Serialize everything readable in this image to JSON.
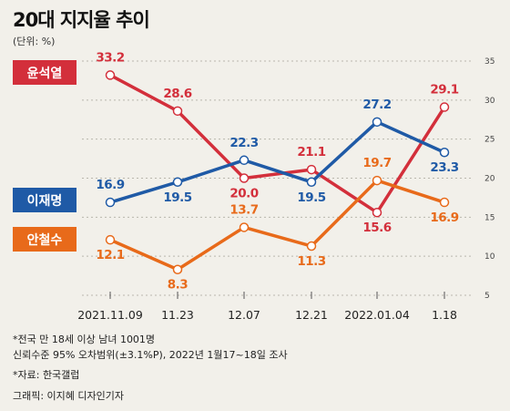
{
  "header": {
    "title": "20대 지지율 추이",
    "unit": "(단위: %)"
  },
  "footnotes": {
    "survey_line1": "*전국 만 18세 이상 남녀 1001명",
    "survey_line2": "신뢰수준 95% 오차범위(±3.1%P), 2022년 1월17~18일 조사",
    "source": "*자료: 한국갤럽",
    "credit": "그래픽: 이지혜 디자인기자"
  },
  "chart_data": {
    "type": "line",
    "title": "20대 지지율 추이",
    "xlabel": "",
    "ylabel": "",
    "categories": [
      "2021.11.09",
      "11.23",
      "12.07",
      "12.21",
      "2022.01.04",
      "1.18"
    ],
    "ylim": [
      5,
      35
    ],
    "yticks": [
      5,
      10,
      15,
      20,
      25,
      30,
      35
    ],
    "grid": true,
    "legend": "left",
    "series": [
      {
        "name": "윤석열",
        "color": "#d32f3b",
        "values": [
          33.2,
          28.6,
          20.0,
          21.1,
          15.6,
          29.1
        ],
        "labels": [
          "33.2",
          "28.6",
          "20.0",
          "21.1",
          "15.6",
          "29.1"
        ]
      },
      {
        "name": "이재명",
        "color": "#1f5aa6",
        "values": [
          16.9,
          19.5,
          22.3,
          19.5,
          27.2,
          23.3
        ],
        "labels": [
          "16.9",
          "19.5",
          "22.3",
          "19.5",
          "27.2",
          "23.3"
        ]
      },
      {
        "name": "안철수",
        "color": "#e86a1a",
        "values": [
          12.1,
          8.3,
          13.7,
          11.3,
          19.7,
          16.9
        ],
        "labels": [
          "12.1",
          "8.3",
          "13.7",
          "11.3",
          "19.7",
          "16.9"
        ]
      }
    ]
  }
}
